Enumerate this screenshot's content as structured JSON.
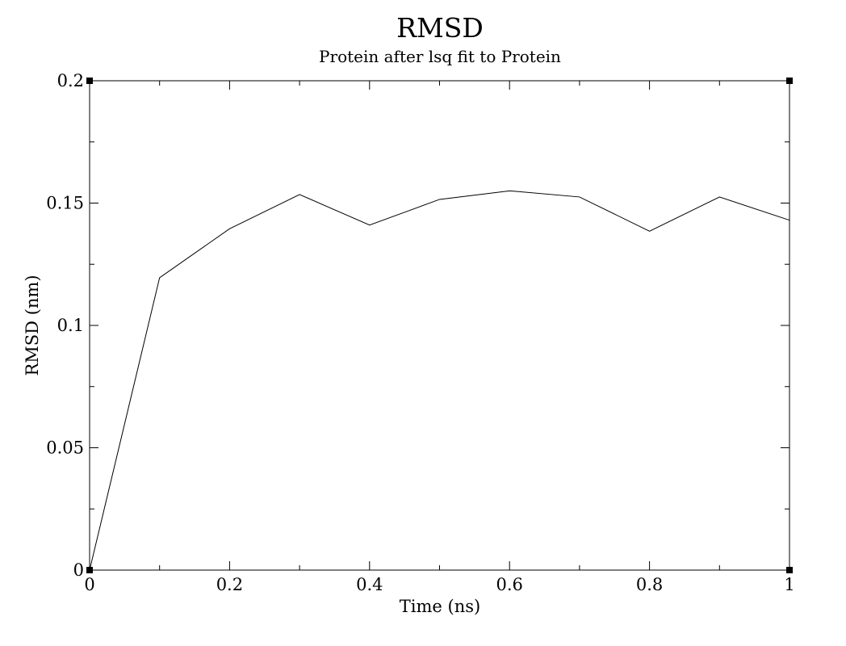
{
  "chart_data": {
    "type": "line",
    "title": "RMSD",
    "subtitle": "Protein after lsq fit to Protein",
    "xlabel": "Time (ns)",
    "ylabel": "RMSD (nm)",
    "xlim": [
      0,
      1
    ],
    "ylim": [
      0,
      0.2
    ],
    "x_ticks": [
      "0",
      "0.2",
      "0.4",
      "0.6",
      "0.8",
      "1"
    ],
    "y_ticks": [
      "0",
      "0.05",
      "0.1",
      "0.15",
      "0.2"
    ],
    "x_tick_values": [
      0,
      0.2,
      0.4,
      0.6,
      0.8,
      1
    ],
    "y_tick_values": [
      0,
      0.05,
      0.1,
      0.15,
      0.2
    ],
    "grid": false,
    "line_color": "#000000",
    "series": [
      {
        "x": [
          0,
          0.1,
          0.2,
          0.3,
          0.4,
          0.5,
          0.6,
          0.7,
          0.8,
          0.9,
          1.0
        ],
        "values": [
          0,
          0.1195,
          0.1395,
          0.1535,
          0.141,
          0.1515,
          0.155,
          0.1525,
          0.1385,
          0.1525,
          0.143
        ]
      }
    ]
  }
}
